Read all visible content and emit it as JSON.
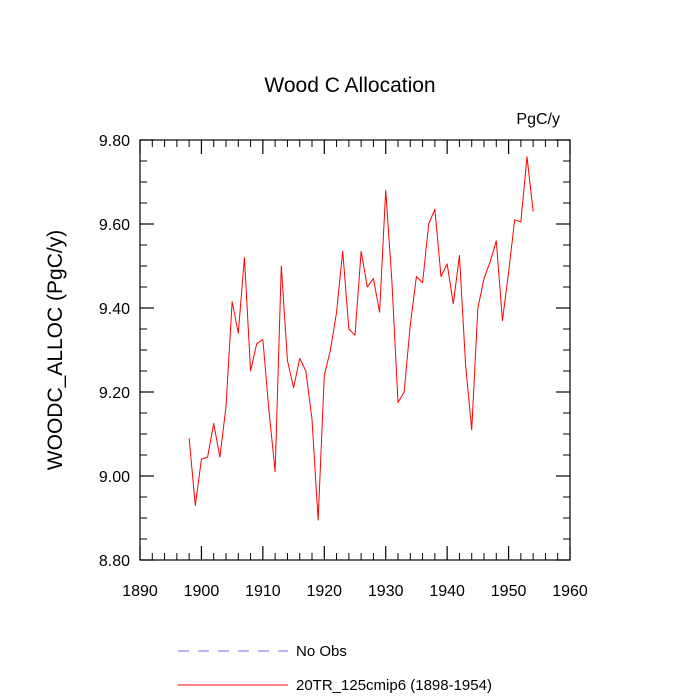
{
  "chart_data": {
    "type": "line",
    "title": "Wood C Allocation",
    "units_label": "PgC/y",
    "xlabel": "",
    "ylabel": "WOODC_ALLOC  (PgC/y)",
    "xlim": [
      1890,
      1960
    ],
    "ylim": [
      8.8,
      9.8
    ],
    "x_ticks": [
      1890,
      1900,
      1910,
      1920,
      1930,
      1940,
      1950,
      1960
    ],
    "x_tick_labels": [
      "1890",
      "1900",
      "1910",
      "1920",
      "1930",
      "1940",
      "1950",
      "1960"
    ],
    "y_ticks": [
      8.8,
      9.0,
      9.2,
      9.4,
      9.6,
      9.8
    ],
    "y_tick_labels": [
      "8.80",
      "9.00",
      "9.20",
      "9.40",
      "9.60",
      "9.80"
    ],
    "grid": false,
    "legend_position": "bottom",
    "series": [
      {
        "name": "No Obs",
        "color": "#6f6fff",
        "dashed": true,
        "x": [],
        "y": []
      },
      {
        "name": "20TR_125cmip6 (1898-1954)",
        "color": "#ff0000",
        "dashed": false,
        "x": [
          1898,
          1899,
          1900,
          1901,
          1902,
          1903,
          1904,
          1905,
          1906,
          1907,
          1908,
          1909,
          1910,
          1911,
          1912,
          1913,
          1914,
          1915,
          1916,
          1917,
          1918,
          1919,
          1920,
          1921,
          1922,
          1923,
          1924,
          1925,
          1926,
          1927,
          1928,
          1929,
          1930,
          1931,
          1932,
          1933,
          1934,
          1935,
          1936,
          1937,
          1938,
          1939,
          1940,
          1941,
          1942,
          1943,
          1944,
          1945,
          1946,
          1947,
          1948,
          1949,
          1950,
          1951,
          1952,
          1953,
          1954
        ],
        "y": [
          9.09,
          8.93,
          9.04,
          9.045,
          9.125,
          9.045,
          9.165,
          9.415,
          9.34,
          9.52,
          9.25,
          9.315,
          9.325,
          9.155,
          9.01,
          9.5,
          9.275,
          9.21,
          9.28,
          9.25,
          9.135,
          8.895,
          9.24,
          9.3,
          9.39,
          9.535,
          9.35,
          9.335,
          9.535,
          9.45,
          9.47,
          9.39,
          9.68,
          9.465,
          9.175,
          9.2,
          9.36,
          9.475,
          9.46,
          9.6,
          9.635,
          9.475,
          9.505,
          9.41,
          9.525,
          9.265,
          9.11,
          9.4,
          9.47,
          9.51,
          9.56,
          9.37,
          9.485,
          9.61,
          9.605,
          9.76,
          9.63
        ]
      }
    ]
  },
  "legend": {
    "items": [
      {
        "label": "No Obs"
      },
      {
        "label": "20TR_125cmip6 (1898-1954)"
      }
    ]
  }
}
